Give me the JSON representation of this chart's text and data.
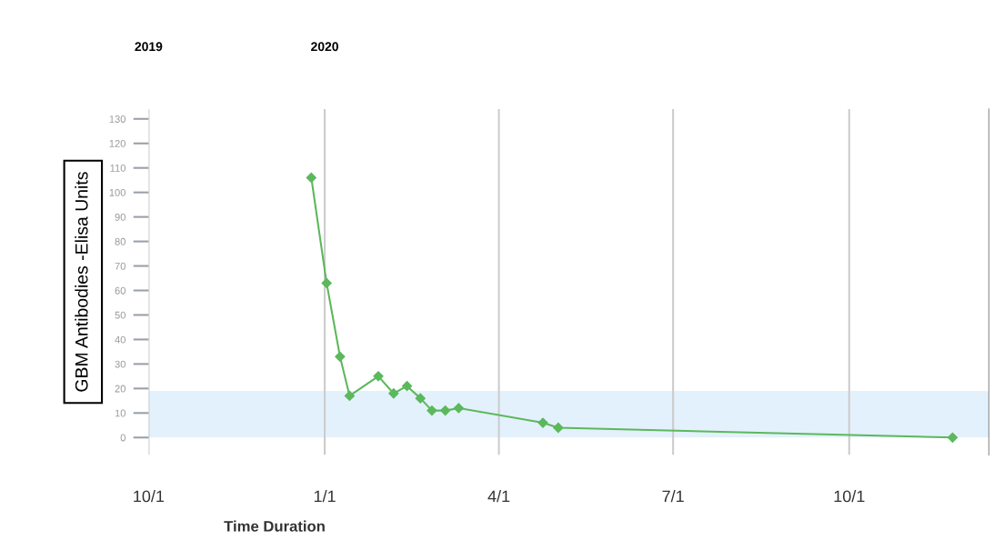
{
  "chart_data": {
    "type": "line",
    "ylabel": "GBM Antibodies -Elisa Units",
    "xlabel": "Time Duration",
    "x": [
      "2019-12-25",
      "2020-01-02",
      "2020-01-09",
      "2020-01-14",
      "2020-01-29",
      "2020-02-06",
      "2020-02-13",
      "2020-02-20",
      "2020-02-26",
      "2020-03-04",
      "2020-03-11",
      "2020-04-24",
      "2020-05-02",
      "2020-11-24"
    ],
    "series": [
      {
        "color": "#5cb85c",
        "values": [
          106,
          63,
          33,
          17,
          25,
          18,
          21,
          16,
          11,
          11,
          12,
          6,
          4,
          0
        ]
      }
    ],
    "marker": "diamond",
    "line_style": "solid",
    "xlim": [
      "2019-10-01",
      "2020-12-13"
    ],
    "xticks": [
      {
        "value": "2019-10-01",
        "label": "10/1"
      },
      {
        "value": "2020-01-01",
        "label": "1/1"
      },
      {
        "value": "2020-04-01",
        "label": "4/1"
      },
      {
        "value": "2020-07-01",
        "label": "7/1"
      },
      {
        "value": "2020-10-01",
        "label": "10/1"
      }
    ],
    "x2lim": [
      "2019-10-01",
      "2020-12-13"
    ],
    "x2ticks": [
      {
        "value": "2019-10-01",
        "label": "2019"
      },
      {
        "value": "2020-01-01",
        "label": "2020"
      }
    ],
    "ylim": [
      -7,
      134
    ],
    "yticks": [
      0,
      10,
      20,
      30,
      40,
      50,
      60,
      70,
      80,
      90,
      100,
      110,
      120,
      130
    ],
    "bands": [
      {
        "axis": "y",
        "from": 0,
        "to": 19,
        "color": "#e3f1fc"
      }
    ],
    "grid": "x",
    "legend": false
  }
}
